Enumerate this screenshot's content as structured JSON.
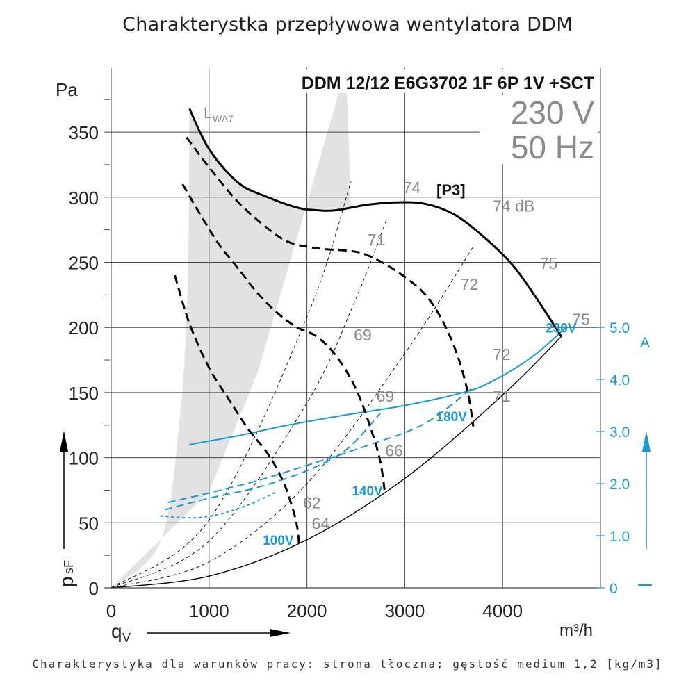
{
  "page": {
    "title": "Charakterystka przepływowa wentylatora DDM",
    "footer": "Charakterystyka dla warunków pracy: strona tłoczna; gęstość medium 1,2 [kg/m3]"
  },
  "chart_data": {
    "type": "line",
    "model": "DDM 12/12 E6G3702 1F 6P 1V +SCT",
    "voltage": "230 V",
    "frequency": "50 Hz",
    "x_axis": {
      "label": "m³/h",
      "symbol": "q",
      "subscript": "V",
      "range": [
        0,
        5000
      ],
      "ticks": [
        0,
        1000,
        2000,
        3000,
        4000
      ]
    },
    "y_axis": {
      "label": "Pa",
      "symbol": "p",
      "subscript": "sF",
      "range": [
        0,
        400
      ],
      "ticks": [
        0,
        50,
        100,
        150,
        200,
        250,
        300,
        350
      ]
    },
    "y2_axis": {
      "label": "A",
      "range": [
        0,
        5.5
      ],
      "ticks": [
        0,
        1.0,
        2.0,
        3.0,
        4.0,
        5.0
      ],
      "tick_labels": [
        "0",
        "1.0",
        "2.0",
        "3.0",
        "4.0",
        "5.0"
      ],
      "color": "#1a9ad6"
    },
    "shaded_region_label": "L",
    "shaded_region_sub": "WA7",
    "operating_point_label": "[P3]",
    "grid": true,
    "colors": {
      "curve": "#000000",
      "current": "#1a9ad6",
      "gray_text": "#8a8a8a",
      "shade": "#e2e2e2"
    },
    "pressure_curves": [
      {
        "name": "230V",
        "style": "solid",
        "points": [
          [
            800,
            368
          ],
          [
            1000,
            337
          ],
          [
            1300,
            311
          ],
          [
            1600,
            300
          ],
          [
            1900,
            292
          ],
          [
            2100,
            290
          ],
          [
            2300,
            290
          ],
          [
            2600,
            294
          ],
          [
            2900,
            296
          ],
          [
            3200,
            295
          ],
          [
            3500,
            287
          ],
          [
            3800,
            270
          ],
          [
            4100,
            248
          ],
          [
            4350,
            222
          ],
          [
            4600,
            193
          ]
        ]
      },
      {
        "name": "180V",
        "style": "dashed",
        "points": [
          [
            770,
            346
          ],
          [
            1000,
            323
          ],
          [
            1300,
            296
          ],
          [
            1600,
            276
          ],
          [
            1800,
            266
          ],
          [
            2000,
            262
          ],
          [
            2200,
            260
          ],
          [
            2400,
            259
          ],
          [
            2600,
            256
          ],
          [
            2900,
            244
          ],
          [
            3200,
            226
          ],
          [
            3400,
            203
          ],
          [
            3550,
            176
          ],
          [
            3650,
            148
          ],
          [
            3700,
            124
          ]
        ]
      },
      {
        "name": "140V",
        "style": "dashed",
        "points": [
          [
            730,
            310
          ],
          [
            900,
            288
          ],
          [
            1100,
            264
          ],
          [
            1300,
            245
          ],
          [
            1500,
            226
          ],
          [
            1700,
            211
          ],
          [
            1900,
            200
          ],
          [
            2100,
            193
          ],
          [
            2300,
            178
          ],
          [
            2500,
            153
          ],
          [
            2650,
            123
          ],
          [
            2750,
            97
          ],
          [
            2800,
            71
          ]
        ]
      },
      {
        "name": "100V",
        "style": "dashed",
        "points": [
          [
            650,
            240
          ],
          [
            800,
            203
          ],
          [
            1000,
            169
          ],
          [
            1200,
            145
          ],
          [
            1400,
            122
          ],
          [
            1600,
            103
          ],
          [
            1750,
            83
          ],
          [
            1850,
            62
          ],
          [
            1900,
            47
          ],
          [
            1920,
            33
          ]
        ]
      }
    ],
    "current_curves": [
      {
        "name": "230V",
        "style": "solid",
        "points": [
          [
            800,
            2.75
          ],
          [
            1300,
            2.92
          ],
          [
            1800,
            3.12
          ],
          [
            2400,
            3.32
          ],
          [
            3000,
            3.5
          ],
          [
            3600,
            3.75
          ],
          [
            3900,
            3.97
          ],
          [
            4300,
            4.43
          ],
          [
            4650,
            5.0
          ]
        ]
      },
      {
        "name": "180V",
        "style": "dashed",
        "points": [
          [
            580,
            1.64
          ],
          [
            1000,
            1.82
          ],
          [
            1500,
            2.06
          ],
          [
            2000,
            2.35
          ],
          [
            2600,
            2.72
          ],
          [
            3200,
            3.15
          ],
          [
            3700,
            3.85
          ]
        ]
      },
      {
        "name": "140V",
        "style": "dashed",
        "points": [
          [
            550,
            1.5
          ],
          [
            1000,
            1.72
          ],
          [
            1500,
            1.93
          ],
          [
            2000,
            2.25
          ],
          [
            2400,
            2.65
          ],
          [
            2750,
            3.35
          ]
        ]
      },
      {
        "name": "100V",
        "style": "dashed",
        "points": [
          [
            500,
            1.38
          ],
          [
            900,
            1.35
          ],
          [
            1300,
            1.52
          ],
          [
            1700,
            1.85
          ]
        ]
      }
    ],
    "system_curves": [
      {
        "style": "solid",
        "points": [
          [
            0,
            0
          ],
          [
            1000,
            9
          ],
          [
            2000,
            37
          ],
          [
            3000,
            84
          ],
          [
            4000,
            148
          ],
          [
            4600,
            193
          ]
        ]
      },
      {
        "style": "dashed",
        "points": [
          [
            0,
            0
          ],
          [
            1000,
            20
          ],
          [
            2000,
            80
          ],
          [
            3000,
            180
          ],
          [
            3700,
            262
          ]
        ]
      },
      {
        "style": "dashed",
        "points": [
          [
            0,
            0
          ],
          [
            1000,
            36
          ],
          [
            2000,
            142
          ],
          [
            2500,
            222
          ],
          [
            2820,
            284
          ]
        ]
      },
      {
        "style": "dashed",
        "points": [
          [
            0,
            0
          ],
          [
            1000,
            52
          ],
          [
            2000,
            208
          ],
          [
            2450,
            312
          ]
        ]
      }
    ],
    "shade_boundary": {
      "upper": [
        [
          0,
          0
        ],
        [
          500,
          35
        ],
        [
          700,
          130
        ],
        [
          780,
          230
        ],
        [
          800,
          368
        ]
      ],
      "lower": [
        [
          0,
          0
        ],
        [
          1000,
          74
        ],
        [
          1500,
          166
        ],
        [
          2000,
          295
        ],
        [
          2400,
          400
        ]
      ]
    },
    "sound_labels": [
      {
        "text": "74",
        "x": 2980,
        "y": 303
      },
      {
        "text": "74 dB",
        "x": 3900,
        "y": 289
      },
      {
        "text": "71",
        "x": 2620,
        "y": 263
      },
      {
        "text": "75",
        "x": 4380,
        "y": 245
      },
      {
        "text": "72",
        "x": 3570,
        "y": 229
      },
      {
        "text": "75",
        "x": 4710,
        "y": 202
      },
      {
        "text": "69",
        "x": 2480,
        "y": 190
      },
      {
        "text": "72",
        "x": 3900,
        "y": 175
      },
      {
        "text": "69",
        "x": 2710,
        "y": 143
      },
      {
        "text": "71",
        "x": 3900,
        "y": 143
      },
      {
        "text": "66",
        "x": 2800,
        "y": 101
      },
      {
        "text": "62",
        "x": 1960,
        "y": 61
      },
      {
        "text": "64",
        "x": 2050,
        "y": 45
      }
    ],
    "voltage_labels": [
      {
        "text": "230V",
        "x": 4440,
        "y": 196
      },
      {
        "text": "180V",
        "x": 3320,
        "y": 128
      },
      {
        "text": "140V",
        "x": 2460,
        "y": 71
      },
      {
        "text": "100V",
        "x": 1550,
        "y": 33
      }
    ]
  }
}
